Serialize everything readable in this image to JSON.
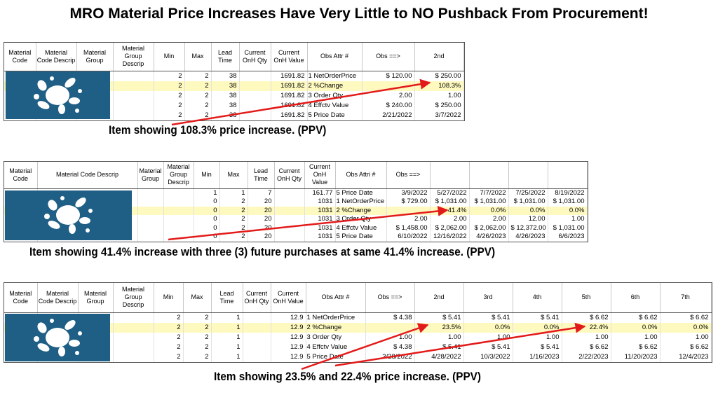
{
  "title": "MRO Material Price Increases Have Very Little to NO Pushback From Procurement!",
  "tables": [
    {
      "columns": [
        "Material Code",
        "Material Code Descrip",
        "Material Group",
        "Material Group Descrip",
        "Min",
        "Max",
        "Lead Time",
        "Current OnH Qty",
        "Current OnH Value",
        "Obs Attr #",
        "Obs ==>",
        "2nd"
      ],
      "rows": [
        [
          null,
          null,
          null,
          null,
          "2",
          "2",
          "38",
          null,
          "1691.82",
          "1 NetOrderPrice",
          "$ 120.00",
          "$ 250.00"
        ],
        [
          null,
          null,
          null,
          null,
          "2",
          "2",
          "38",
          null,
          "1691.82",
          "2 %Change",
          null,
          "108.3%"
        ],
        [
          null,
          null,
          null,
          null,
          "2",
          "2",
          "38",
          null,
          "1691.82",
          "3 Order Qty",
          "2.00",
          "1.00"
        ],
        [
          null,
          null,
          null,
          null,
          "2",
          "2",
          "38",
          null,
          "1691.82",
          "4 Effctv Value",
          "$ 240.00",
          "$ 250.00"
        ],
        [
          null,
          null,
          null,
          null,
          "2",
          "2",
          "38",
          null,
          "1691.82",
          "5 Price Date",
          "2/21/2022",
          "3/7/2022"
        ]
      ],
      "caption": "Item showing 108.3% price increase. (PPV)"
    },
    {
      "columns": [
        "Material Code",
        "Material Code Descrip",
        "Material Group",
        "Material Group Descrip",
        "Min",
        "Max",
        "Lead Time",
        "Current OnH Qty",
        "Current OnH Value",
        "Obs Attri #",
        "Obs ==>",
        null,
        null,
        null,
        null
      ],
      "rows": [
        [
          null,
          null,
          null,
          null,
          "1",
          "1",
          "7",
          null,
          "161.77",
          "5 Price Date",
          "3/9/2022",
          "5/27/2022",
          "7/7/2022",
          "7/25/2022",
          "8/19/2022"
        ],
        [
          null,
          null,
          null,
          null,
          "0",
          "2",
          "20",
          null,
          "1031",
          "1 NetOrderPrice",
          "$ 729.00",
          "$ 1,031.00",
          "$ 1,031.00",
          "$ 1,031.00",
          "$ 1,031.00"
        ],
        [
          null,
          null,
          null,
          null,
          "0",
          "2",
          "20",
          null,
          "1031",
          "2 %Change",
          null,
          "41.4%",
          "0.0%",
          "0.0%",
          "0.0%"
        ],
        [
          null,
          null,
          null,
          null,
          "0",
          "2",
          "20",
          null,
          "1031",
          "3 Order Qty",
          "2.00",
          "2.00",
          "2.00",
          "12.00",
          "1.00"
        ],
        [
          null,
          null,
          null,
          null,
          "0",
          "2",
          "20",
          null,
          "1031",
          "4 Effctv Value",
          "$ 1,458.00",
          "$ 2,062.00",
          "$ 2,062.00",
          "$ 12,372.00",
          "$ 1,031.00"
        ],
        [
          null,
          null,
          null,
          null,
          "0",
          "2",
          "20",
          null,
          "1031",
          "5 Price Date",
          "6/10/2022",
          "12/16/2022",
          "4/26/2023",
          "4/26/2023",
          "6/6/2023"
        ]
      ],
      "caption": "Item showing 41.4% increase with three (3) future purchases at same 41.4% increase. (PPV)"
    },
    {
      "columns": [
        "Material Code",
        "Material Code Descrip",
        "Material Group",
        "Material Group Descrip",
        "Min",
        "Max",
        "Lead Time",
        "Current OnH Qty",
        "Current OnH Value",
        "Obs Attr #",
        "Obs ==>",
        "2nd",
        "3rd",
        "4th",
        "5th",
        "6th",
        "7th"
      ],
      "rows": [
        [
          null,
          null,
          null,
          null,
          "2",
          "2",
          "1",
          null,
          "12.9",
          "1 NetOrderPrice",
          "$ 4.38",
          "$ 5.41",
          "$ 5.41",
          "$ 5.41",
          "$ 6.62",
          "$ 6.62",
          "$ 6.62"
        ],
        [
          null,
          null,
          null,
          null,
          "2",
          "2",
          "1",
          null,
          "12.9",
          "2 %Change",
          null,
          "23.5%",
          "0.0%",
          "0.0%",
          "22.4%",
          "0.0%",
          "0.0%"
        ],
        [
          null,
          null,
          null,
          null,
          "2",
          "2",
          "1",
          null,
          "12.9",
          "3 Order Qty",
          "1.00",
          "1.00",
          "1.00",
          "1.00",
          "1.00",
          "1.00",
          "1.00"
        ],
        [
          null,
          null,
          null,
          null,
          "2",
          "2",
          "1",
          null,
          "12.9",
          "4 Effctv Value",
          "$ 4.38",
          "$ 5.41",
          "$ 5.41",
          "$ 5.41",
          "$ 6.62",
          "$ 6.62",
          "$ 6.62"
        ],
        [
          null,
          null,
          null,
          null,
          "2",
          "2",
          "1",
          null,
          "12.9",
          "5 Price Date",
          "3/28/2022",
          "4/28/2022",
          "10/3/2022",
          "1/16/2023",
          "2/22/2023",
          "11/20/2023",
          "12/4/2023"
        ]
      ],
      "caption": "Item showing 23.5% and 22.4% price increase. (PPV)"
    }
  ]
}
